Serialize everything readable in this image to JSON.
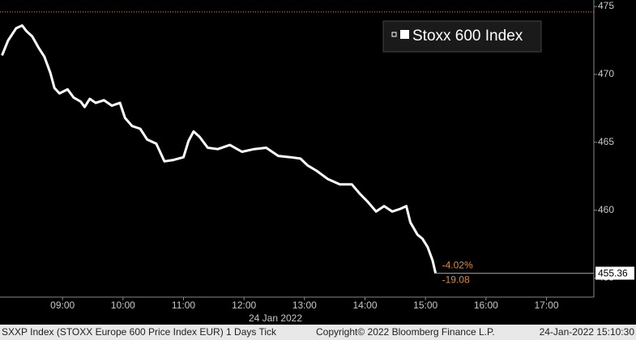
{
  "chart_data": {
    "type": "line",
    "date_label": "24 Jan 2022",
    "legend": "Stoxx 600 Index",
    "footer": [
      "SXXP Index (STOXX Europe 600 Price Index EUR) 1 Days  Tick",
      "Copyright© 2022 Bloomberg Finance L.P.",
      "24-Jan-2022 15:10:30"
    ],
    "annotations": [
      "-4.02%",
      "-19.08"
    ],
    "reference_line": 474.6,
    "color": "#ffffff",
    "x": [
      "08:00",
      "08:06",
      "08:14",
      "08:20",
      "08:24",
      "08:30",
      "08:36",
      "08:42",
      "08:48",
      "08:52",
      "08:57",
      "09:05",
      "09:11",
      "09:18",
      "09:22",
      "09:27",
      "09:33",
      "09:41",
      "09:49",
      "09:57",
      "10:02",
      "10:09",
      "10:17",
      "10:24",
      "10:33",
      "10:41",
      "10:50",
      "11:00",
      "11:05",
      "11:10",
      "11:16",
      "11:24",
      "11:34",
      "11:46",
      "11:58",
      "12:10",
      "12:22",
      "12:34",
      "12:46",
      "12:56",
      "13:03",
      "13:12",
      "13:23",
      "13:35",
      "13:47",
      "13:55",
      "14:03",
      "14:11",
      "14:19",
      "14:27",
      "14:35",
      "14:41",
      "14:45",
      "14:52",
      "14:57",
      "15:02",
      "15:07",
      "15:10"
    ],
    "values": [
      471.4,
      472.5,
      473.4,
      473.6,
      473.2,
      472.8,
      472.0,
      471.3,
      470.1,
      469.0,
      468.6,
      468.9,
      468.3,
      468.0,
      467.6,
      468.2,
      467.9,
      468.1,
      467.7,
      467.9,
      466.8,
      466.2,
      466.0,
      465.2,
      464.9,
      463.6,
      463.7,
      463.9,
      465.1,
      465.8,
      465.4,
      464.6,
      464.5,
      464.8,
      464.3,
      464.5,
      464.6,
      464.0,
      463.9,
      463.8,
      463.3,
      462.9,
      462.3,
      461.9,
      461.9,
      461.2,
      460.6,
      459.9,
      460.3,
      459.9,
      460.1,
      460.3,
      459.1,
      458.2,
      457.9,
      457.3,
      456.3,
      455.36
    ],
    "xlim": [
      "07:58",
      "17:47"
    ],
    "xticks": [
      "09:00",
      "10:00",
      "11:00",
      "12:00",
      "13:00",
      "14:00",
      "15:00",
      "16:00",
      "17:00"
    ],
    "ylim": [
      453.6,
      475.48
    ],
    "yticks": [
      455,
      460,
      465,
      470,
      475
    ]
  }
}
